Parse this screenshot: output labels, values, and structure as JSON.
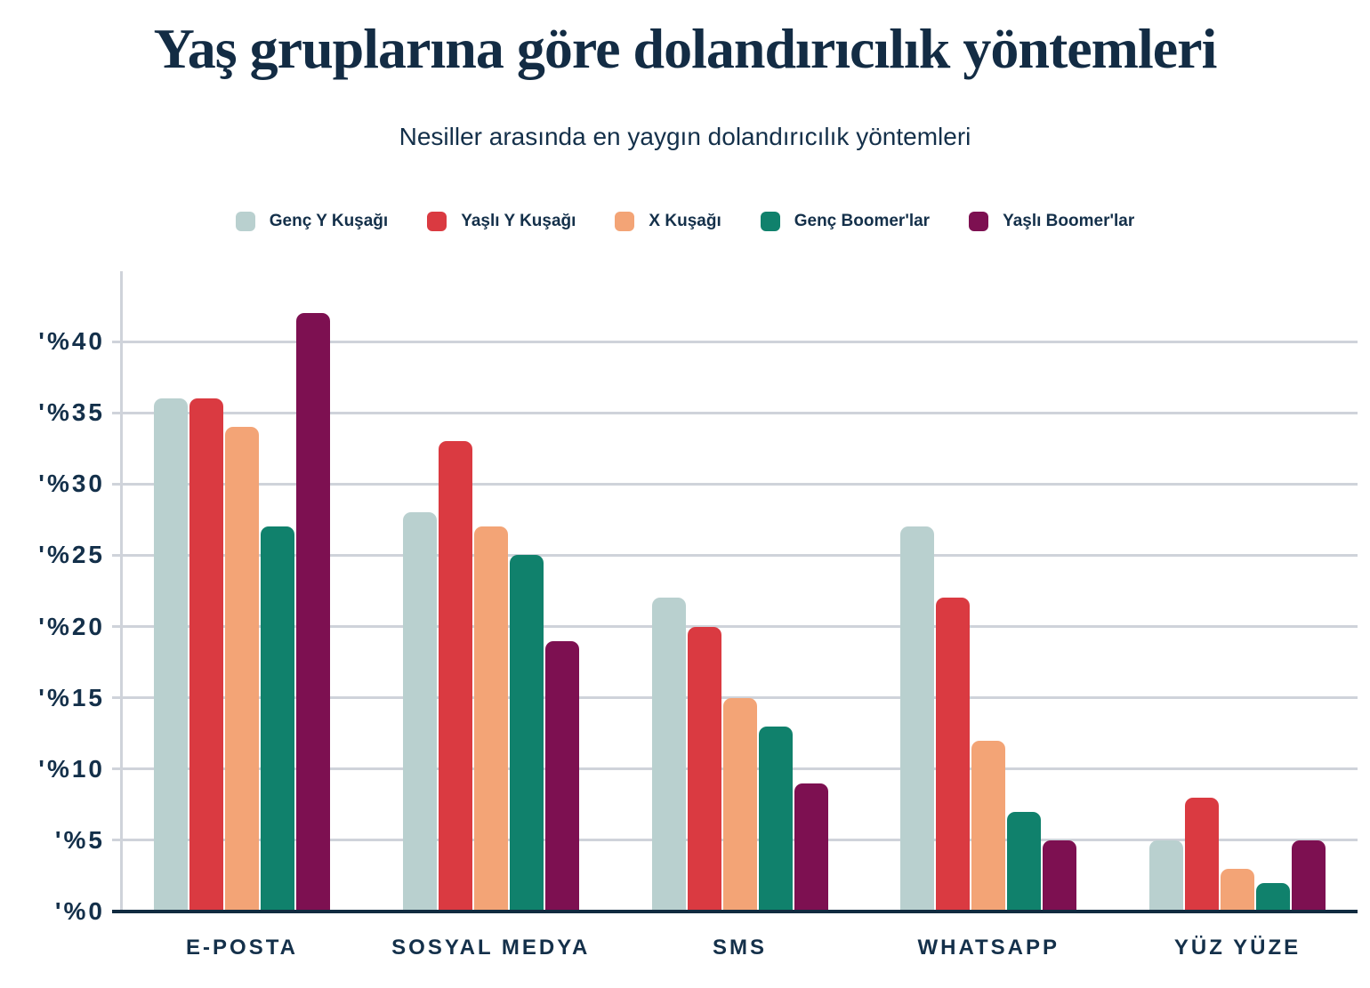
{
  "header": {
    "title": "Yaş gruplarına göre dolandırıcılık yöntemleri",
    "subtitle": "Nesiller arasında en yaygın dolandırıcılık yöntemleri"
  },
  "colors": {
    "text": "#14304A",
    "title_text": "#132C44",
    "baseline": "#112B40",
    "gridline": "#CFD3DA"
  },
  "chart_data": {
    "type": "bar",
    "title": "Yaş gruplarına göre dolandırıcılık yöntemleri",
    "subtitle": "Nesiller arasında en yaygın dolandırıcılık yöntemleri",
    "categories": [
      "E-POSTA",
      "SOSYAL MEDYA",
      "SMS",
      "WHATSAPP",
      "YÜZ YÜZE"
    ],
    "series": [
      {
        "name": "Genç Y Kuşağı",
        "color": "#B9D0CF",
        "values": [
          36,
          28,
          22,
          27,
          5
        ]
      },
      {
        "name": "Yaşlı Y Kuşağı",
        "color": "#DA3A41",
        "values": [
          36,
          33,
          20,
          22,
          8
        ]
      },
      {
        "name": "X Kuşağı",
        "color": "#F3A476",
        "values": [
          34,
          27,
          15,
          12,
          3
        ]
      },
      {
        "name": "Genç Boomer'lar",
        "color": "#10816C",
        "values": [
          27,
          25,
          13,
          7,
          2
        ]
      },
      {
        "name": "Yaşlı Boomer'lar",
        "color": "#7D1051",
        "values": [
          42,
          19,
          9,
          5,
          5
        ]
      }
    ],
    "y_axis": {
      "ticks": [
        0,
        5,
        10,
        15,
        20,
        25,
        30,
        35,
        40
      ],
      "tick_labels": [
        "'%0",
        "'%5",
        "'%10",
        "'%15",
        "'%20",
        "'%25",
        "'%30",
        "'%35",
        "'%40"
      ],
      "ylim": [
        0,
        45
      ],
      "unit": "percent",
      "grid": true
    },
    "legend_position": "top",
    "xlabel": "",
    "ylabel": ""
  }
}
